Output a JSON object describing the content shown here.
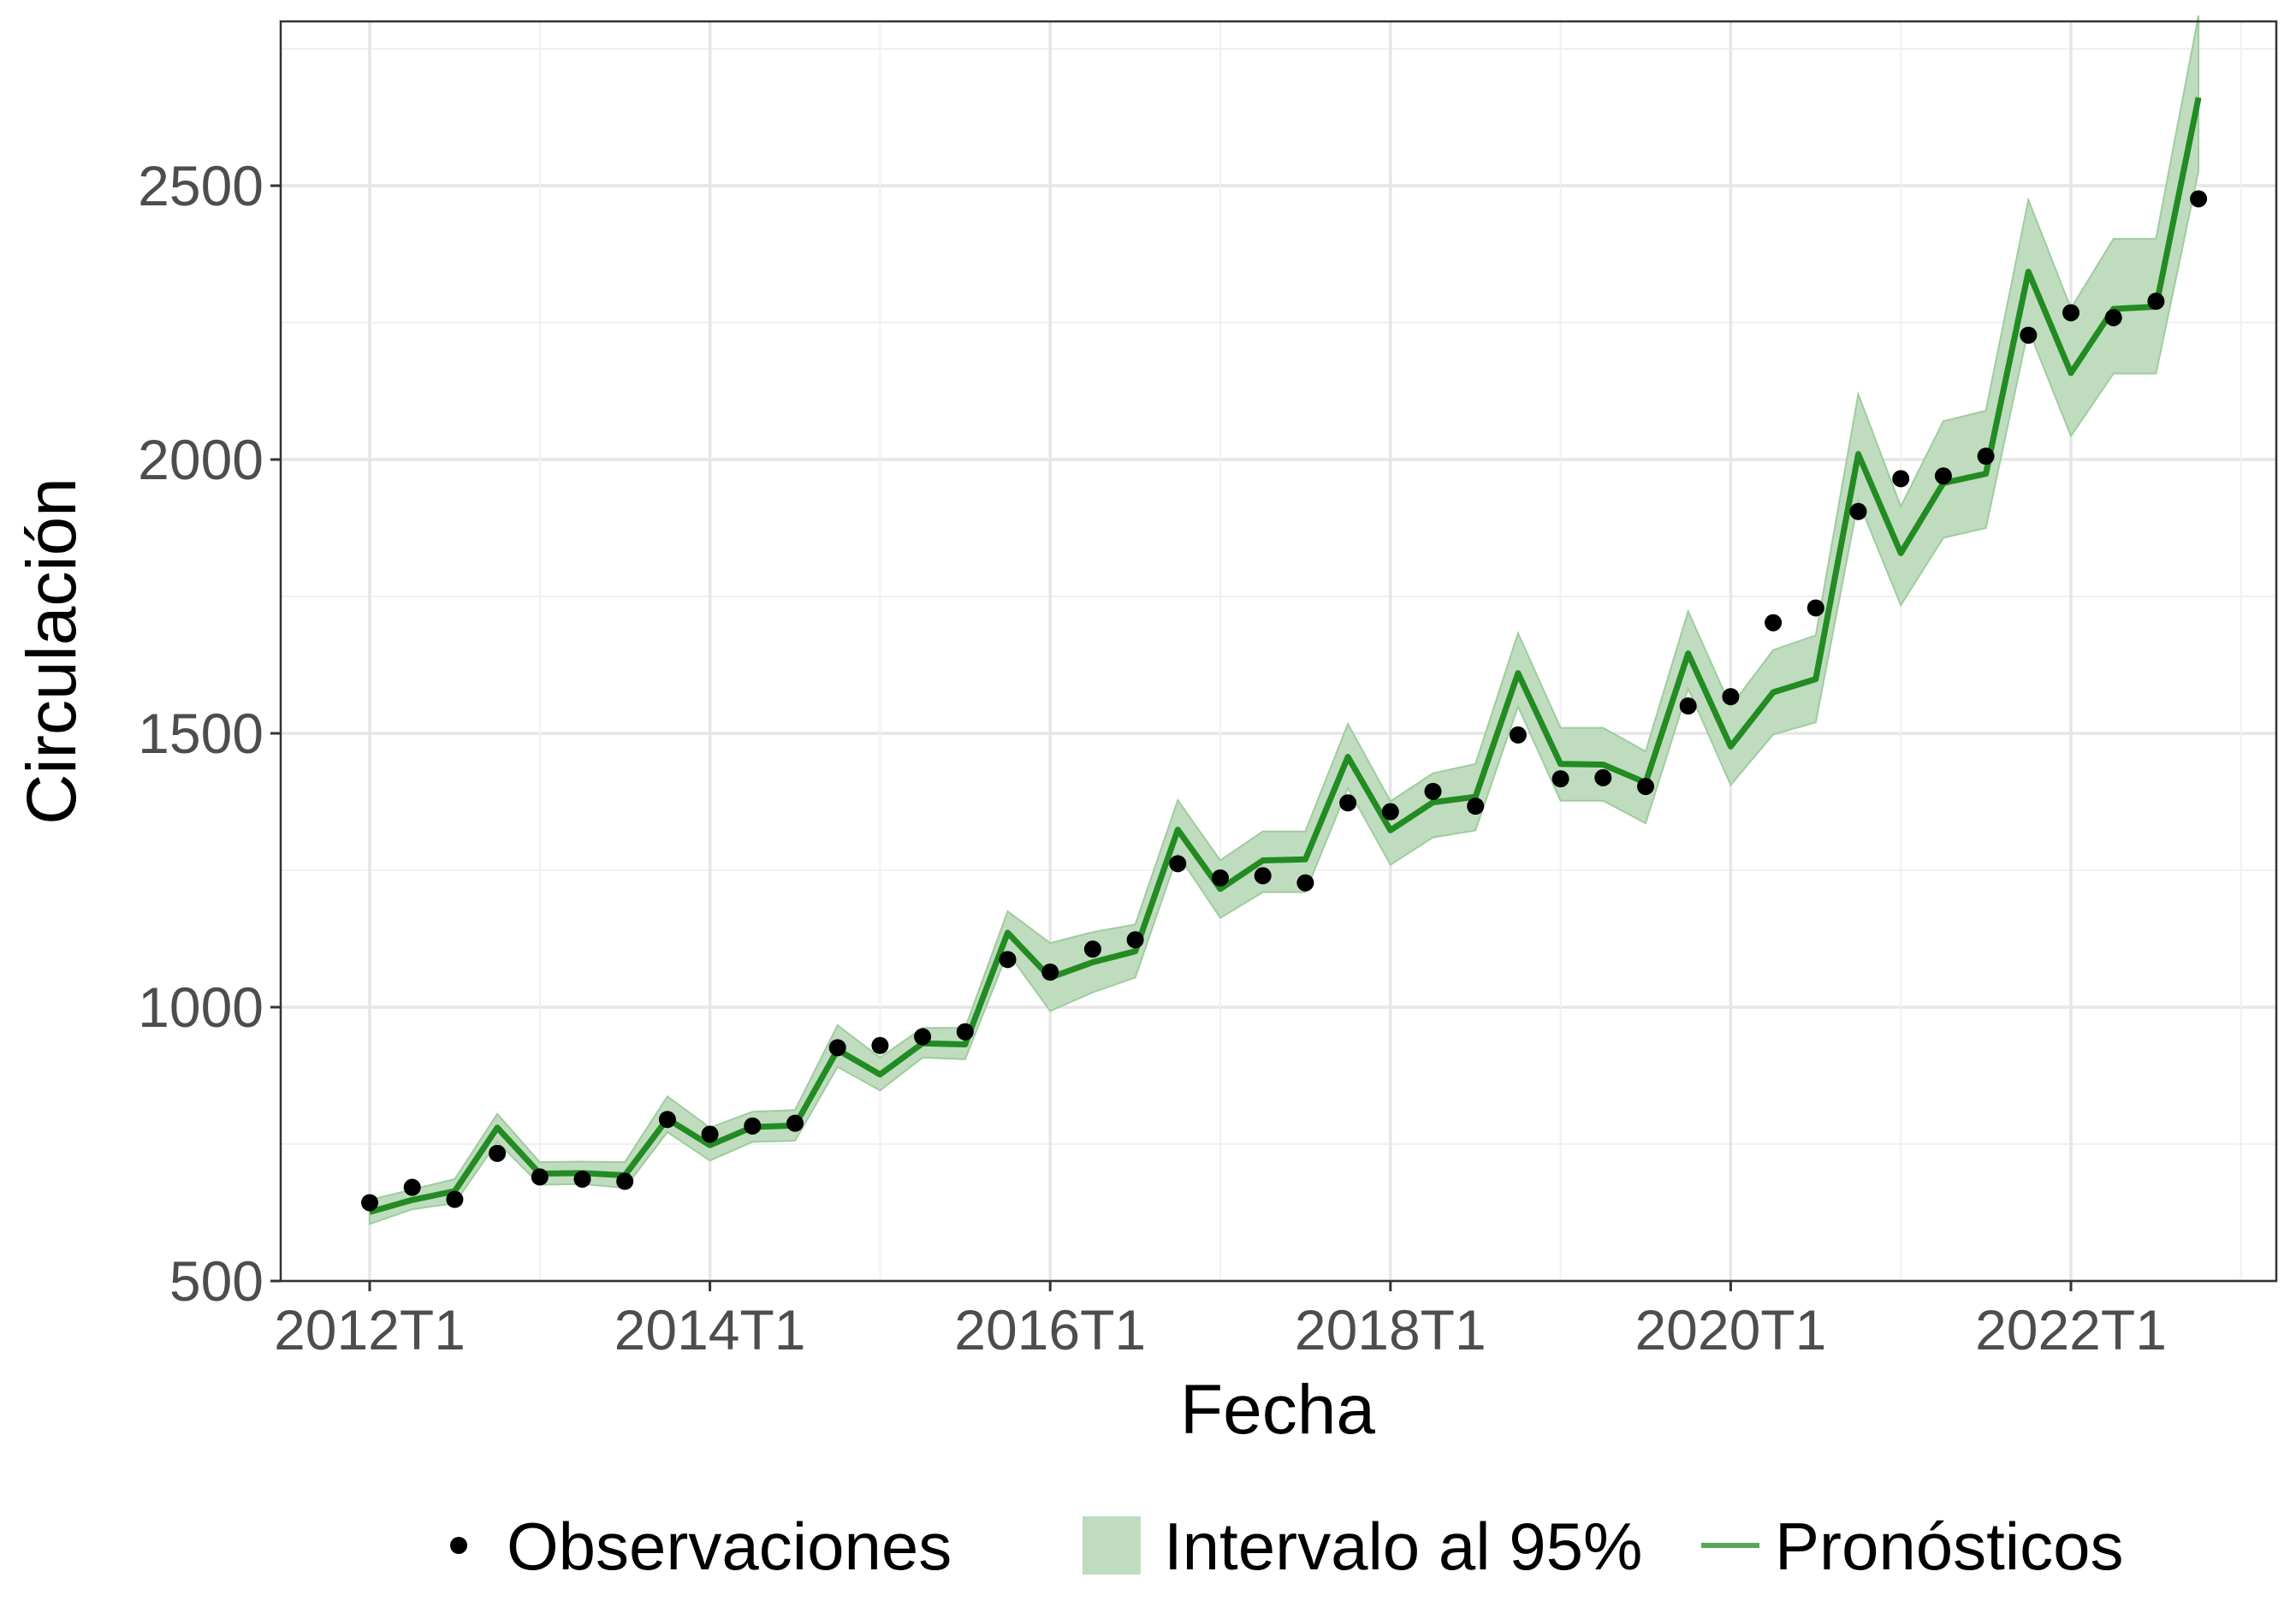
{
  "chart_data": {
    "type": "line",
    "xlabel": "Fecha",
    "ylabel": "Circulación",
    "ylim": [
      500,
      2800
    ],
    "yticks": [
      500,
      1000,
      1500,
      2000,
      2500
    ],
    "x_tick_labels": [
      "2012T1",
      "2014T1",
      "2016T1",
      "2018T1",
      "2020T1",
      "2022T1"
    ],
    "grid": true,
    "legend_position": "bottom",
    "x": [
      "2012T1",
      "2012T2",
      "2012T3",
      "2012T4",
      "2013T1",
      "2013T2",
      "2013T3",
      "2013T4",
      "2014T1",
      "2014T2",
      "2014T3",
      "2014T4",
      "2015T1",
      "2015T2",
      "2015T3",
      "2015T4",
      "2016T1",
      "2016T2",
      "2016T3",
      "2016T4",
      "2017T1",
      "2017T2",
      "2017T3",
      "2017T4",
      "2018T1",
      "2018T2",
      "2018T3",
      "2018T4",
      "2019T1",
      "2019T2",
      "2019T3",
      "2019T4",
      "2020T1",
      "2020T2",
      "2020T3",
      "2020T4",
      "2021T1",
      "2021T2",
      "2021T3",
      "2021T4",
      "2022T1",
      "2022T2",
      "2022T3",
      "2022T4"
    ],
    "series": [
      {
        "name": "Observaciones",
        "kind": "points",
        "color": "#000000",
        "values": [
          643,
          671,
          649,
          733,
          690,
          686,
          682,
          795,
          768,
          783,
          788,
          926,
          930,
          946,
          955,
          1087,
          1064,
          1106,
          1123,
          1262,
          1236,
          1240,
          1227,
          1373,
          1357,
          1394,
          1367,
          1497,
          1417,
          1419,
          1403,
          1550,
          1567,
          1702,
          1729,
          1905,
          1965,
          1970,
          2006,
          2227,
          2268,
          2259,
          2289,
          2476
        ]
      },
      {
        "name": "Pronósticos",
        "kind": "line",
        "color": "#228b22",
        "values": [
          626,
          648,
          664,
          780,
          696,
          697,
          693,
          796,
          748,
          781,
          784,
          922,
          877,
          934,
          932,
          1136,
          1054,
          1082,
          1102,
          1324,
          1216,
          1268,
          1270,
          1457,
          1323,
          1374,
          1384,
          1610,
          1444,
          1443,
          1410,
          1646,
          1476,
          1575,
          1599,
          2010,
          1829,
          1957,
          1974,
          2343,
          2158,
          2275,
          2279,
          2661
        ]
      },
      {
        "name": "Intervalo al 95%",
        "kind": "band",
        "color": "#bfdcbf",
        "lower": [
          604,
          631,
          642,
          754,
          676,
          677,
          670,
          772,
          720,
          754,
          756,
          891,
          848,
          908,
          905,
          1100,
          993,
          1027,
          1054,
          1279,
          1163,
          1210,
          1210,
          1400,
          1260,
          1310,
          1323,
          1549,
          1377,
          1377,
          1336,
          1582,
          1406,
          1498,
          1520,
          1925,
          1734,
          1857,
          1875,
          2238,
          2043,
          2157,
          2157,
          2527
        ],
        "upper": [
          648,
          667,
          686,
          805,
          717,
          718,
          717,
          837,
          780,
          809,
          812,
          967,
          908,
          962,
          962,
          1175,
          1117,
          1137,
          1151,
          1378,
          1268,
          1321,
          1321,
          1517,
          1376,
          1427,
          1444,
          1683,
          1510,
          1510,
          1467,
          1723,
          1549,
          1652,
          1679,
          2119,
          1914,
          2070,
          2089,
          2474,
          2276,
          2403,
          2403,
          2811
        ]
      }
    ]
  },
  "legend": {
    "items": [
      {
        "label": "Observaciones",
        "symbol": "point",
        "color": "#000000"
      },
      {
        "label": "Intervalo al 95%",
        "symbol": "band",
        "color": "#bfdcbf"
      },
      {
        "label": "Pronósticos",
        "symbol": "line",
        "color": "#5aa55a"
      }
    ]
  }
}
